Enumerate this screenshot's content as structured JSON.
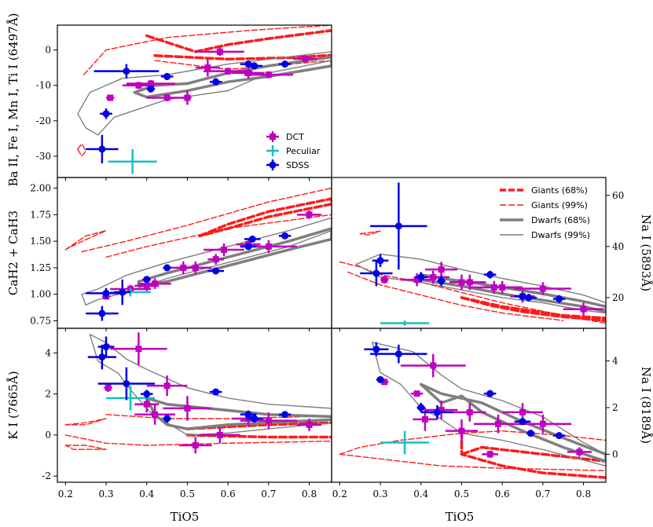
{
  "colors": {
    "dct": "#bf00bf",
    "peculiar": "#19bfbf",
    "sdss": "#0000e6",
    "giants": "#ff1a1a",
    "dwarfs": "#7f7f7f"
  },
  "legend_points": [
    "DCT",
    "Peculiar",
    "SDSS"
  ],
  "legend_contours": [
    "Giants (68%)",
    "Giants (99%)",
    "Dwarfs (68%)",
    "Dwarfs (99%)"
  ],
  "chart_data": [
    {
      "id": "ba_ti",
      "type": "scatter",
      "xlabel": "",
      "ylabel": "Ba II, Fe I, Mn I, Ti I (6497Å)",
      "xlim": [
        0.18,
        0.855
      ],
      "ylim": [
        -36,
        7
      ],
      "yticks": [
        "-30",
        "-20",
        "-10",
        "0"
      ],
      "ytick_values": [
        -30,
        -20,
        -10,
        0
      ],
      "series": [
        {
          "name": "DCT",
          "points": [
            [
              0.31,
              -13.5,
              0.01,
              0.5
            ],
            [
              0.38,
              -10.0,
              0.04,
              1.0
            ],
            [
              0.41,
              -9.5,
              0.06,
              1.0
            ],
            [
              0.45,
              -13.5,
              0.05,
              1.0
            ],
            [
              0.5,
              -13.5,
              0.01,
              2.0
            ],
            [
              0.55,
              -5.0,
              0.03,
              2.5
            ],
            [
              0.58,
              -0.5,
              0.06,
              1.2
            ],
            [
              0.6,
              -6.0,
              0.06,
              1.0
            ],
            [
              0.65,
              -6.5,
              0.04,
              1.5
            ],
            [
              0.7,
              -7.0,
              0.06,
              1.0
            ],
            [
              0.79,
              -2.5,
              0.03,
              1.0
            ]
          ]
        },
        {
          "name": "Peculiar",
          "points": [
            [
              0.365,
              -31.5,
              0.06,
              3.5
            ]
          ]
        },
        {
          "name": "SDSS",
          "points": [
            [
              0.29,
              -28.0,
              0.04,
              4.0
            ],
            [
              0.3,
              -18.0,
              0.015,
              1.5
            ],
            [
              0.35,
              -6.0,
              0.08,
              2.0
            ],
            [
              0.41,
              -11.0,
              0.01,
              1.0
            ],
            [
              0.45,
              -7.5,
              0.015,
              1.0
            ],
            [
              0.57,
              -9.0,
              0.015,
              1.0
            ],
            [
              0.65,
              -4.0,
              0.02,
              1.0
            ],
            [
              0.665,
              -4.5,
              0.02,
              1.0
            ],
            [
              0.74,
              -4.0,
              0.015,
              1.0
            ]
          ]
        }
      ]
    },
    {
      "id": "cah",
      "type": "scatter",
      "xlabel": "",
      "ylabel": "CaH2 + CaH3",
      "xlim": [
        0.18,
        0.855
      ],
      "ylim": [
        0.68,
        2.1
      ],
      "yticks": [
        "0.75",
        "1.00",
        "1.25",
        "1.50",
        "1.75",
        "2.00"
      ],
      "ytick_values": [
        0.75,
        1.0,
        1.25,
        1.5,
        1.75,
        2.0
      ],
      "series": [
        {
          "name": "DCT",
          "points": [
            [
              0.3,
              0.98,
              0.01,
              0.02
            ],
            [
              0.36,
              1.05,
              0.05,
              0.04
            ],
            [
              0.4,
              1.08,
              0.03,
              0.05
            ],
            [
              0.42,
              1.1,
              0.04,
              0.05
            ],
            [
              0.49,
              1.25,
              0.03,
              0.06
            ],
            [
              0.52,
              1.25,
              0.04,
              0.06
            ],
            [
              0.57,
              1.33,
              0.02,
              0.05
            ],
            [
              0.59,
              1.42,
              0.05,
              0.06
            ],
            [
              0.65,
              1.47,
              0.03,
              0.05
            ],
            [
              0.7,
              1.45,
              0.07,
              0.06
            ],
            [
              0.8,
              1.75,
              0.03,
              0.04
            ]
          ]
        },
        {
          "name": "Peculiar",
          "points": [
            [
              0.36,
              1.02,
              0.05,
              0.04
            ]
          ]
        },
        {
          "name": "SDSS",
          "points": [
            [
              0.29,
              0.82,
              0.04,
              0.07
            ],
            [
              0.3,
              1.01,
              0.05,
              0.05
            ],
            [
              0.34,
              1.02,
              0.02,
              0.12
            ],
            [
              0.4,
              1.14,
              0.01,
              0.02
            ],
            [
              0.45,
              1.25,
              0.01,
              0.02
            ],
            [
              0.57,
              1.22,
              0.02,
              0.02
            ],
            [
              0.65,
              1.45,
              0.02,
              0.02
            ],
            [
              0.66,
              1.52,
              0.02,
              0.02
            ],
            [
              0.74,
              1.55,
              0.015,
              0.02
            ]
          ]
        }
      ]
    },
    {
      "id": "na5893",
      "type": "scatter",
      "xlabel": "",
      "ylabel": "Na I (5893Å)",
      "xlim": [
        0.18,
        0.855
      ],
      "ylim": [
        8,
        67
      ],
      "yticks": [
        "20",
        "40",
        "60"
      ],
      "ytick_values": [
        20,
        40,
        60
      ],
      "series": [
        {
          "name": "DCT",
          "points": [
            [
              0.31,
              27.0,
              0.01,
              1.5
            ],
            [
              0.39,
              27.0,
              0.04,
              2.5
            ],
            [
              0.43,
              28.0,
              0.04,
              2.5
            ],
            [
              0.45,
              31.0,
              0.04,
              3.0
            ],
            [
              0.5,
              26.0,
              0.03,
              3.0
            ],
            [
              0.52,
              26.0,
              0.04,
              3.0
            ],
            [
              0.58,
              24.0,
              0.06,
              2.5
            ],
            [
              0.6,
              24.0,
              0.05,
              2.5
            ],
            [
              0.65,
              20.5,
              0.03,
              2.5
            ],
            [
              0.7,
              23.5,
              0.07,
              2.5
            ],
            [
              0.8,
              15.5,
              0.05,
              2.5
            ]
          ]
        },
        {
          "name": "Peculiar",
          "points": [
            [
              0.36,
              10.0,
              0.06,
              1.0
            ]
          ]
        },
        {
          "name": "SDSS",
          "points": [
            [
              0.29,
              29.5,
              0.04,
              5.0
            ],
            [
              0.3,
              34.5,
              0.02,
              2.5
            ],
            [
              0.345,
              48.0,
              0.07,
              17.0
            ],
            [
              0.4,
              28.0,
              0.015,
              2.0
            ],
            [
              0.45,
              26.5,
              0.01,
              2.0
            ],
            [
              0.57,
              29.0,
              0.015,
              1.5
            ],
            [
              0.65,
              20.5,
              0.02,
              1.5
            ],
            [
              0.665,
              20.0,
              0.02,
              1.5
            ],
            [
              0.74,
              19.5,
              0.015,
              1.5
            ]
          ]
        }
      ]
    },
    {
      "id": "ki",
      "type": "scatter",
      "xlabel": "TiO5",
      "ylabel": "K I (7665Å)",
      "xlim": [
        0.18,
        0.855
      ],
      "ylim": [
        -2.3,
        5.2
      ],
      "yticks": [
        "-2",
        "0",
        "2",
        "4"
      ],
      "ytick_values": [
        -2,
        0,
        2,
        4
      ],
      "xticks": [
        "0.2",
        "0.3",
        "0.4",
        "0.5",
        "0.6",
        "0.7",
        "0.8"
      ],
      "xtick_values": [
        0.2,
        0.3,
        0.4,
        0.5,
        0.6,
        0.7,
        0.8
      ],
      "series": [
        {
          "name": "DCT",
          "points": [
            [
              0.305,
              2.3,
              0.01,
              0.2
            ],
            [
              0.38,
              4.2,
              0.07,
              0.8
            ],
            [
              0.4,
              1.5,
              0.03,
              0.4
            ],
            [
              0.42,
              1.0,
              0.05,
              0.5
            ],
            [
              0.45,
              2.4,
              0.05,
              0.5
            ],
            [
              0.5,
              1.3,
              0.06,
              0.6
            ],
            [
              0.52,
              -0.5,
              0.04,
              0.4
            ],
            [
              0.58,
              0.0,
              0.05,
              0.4
            ],
            [
              0.65,
              0.8,
              0.04,
              0.4
            ],
            [
              0.7,
              0.7,
              0.07,
              0.4
            ],
            [
              0.8,
              0.5,
              0.03,
              0.3
            ]
          ]
        },
        {
          "name": "Peculiar",
          "points": [
            [
              0.36,
              1.8,
              0.06,
              0.6
            ]
          ]
        },
        {
          "name": "SDSS",
          "points": [
            [
              0.29,
              3.8,
              0.035,
              0.6
            ],
            [
              0.3,
              4.3,
              0.02,
              0.5
            ],
            [
              0.35,
              2.5,
              0.07,
              0.8
            ],
            [
              0.4,
              2.0,
              0.015,
              0.2
            ],
            [
              0.45,
              0.8,
              0.01,
              0.2
            ],
            [
              0.57,
              2.1,
              0.015,
              0.15
            ],
            [
              0.65,
              1.0,
              0.02,
              0.2
            ],
            [
              0.665,
              0.8,
              0.02,
              0.2
            ],
            [
              0.74,
              1.0,
              0.015,
              0.15
            ]
          ]
        }
      ]
    },
    {
      "id": "na8189",
      "type": "scatter",
      "xlabel": "TiO5",
      "ylabel": "Na I (8189Å)",
      "xlim": [
        0.18,
        0.855
      ],
      "ylim": [
        -1.2,
        5.4
      ],
      "yticks": [
        "0",
        "2",
        "4"
      ],
      "ytick_values": [
        0,
        2,
        4
      ],
      "xticks": [
        "0.2",
        "0.3",
        "0.4",
        "0.5",
        "0.6",
        "0.7",
        "0.8"
      ],
      "xtick_values": [
        0.2,
        0.3,
        0.4,
        0.5,
        0.6,
        0.7,
        0.8
      ],
      "series": [
        {
          "name": "DCT",
          "points": [
            [
              0.31,
              3.1,
              0.01,
              0.1
            ],
            [
              0.39,
              2.6,
              0.015,
              0.1
            ],
            [
              0.41,
              1.5,
              0.03,
              0.5
            ],
            [
              0.43,
              3.8,
              0.08,
              0.5
            ],
            [
              0.45,
              1.9,
              0.04,
              0.4
            ],
            [
              0.5,
              1.0,
              0.04,
              0.5
            ],
            [
              0.52,
              1.8,
              0.04,
              0.4
            ],
            [
              0.57,
              0.0,
              0.02,
              0.15
            ],
            [
              0.59,
              1.3,
              0.06,
              0.4
            ],
            [
              0.65,
              1.8,
              0.05,
              0.4
            ],
            [
              0.7,
              1.3,
              0.07,
              0.4
            ],
            [
              0.79,
              0.1,
              0.03,
              0.2
            ]
          ]
        },
        {
          "name": "Peculiar",
          "points": [
            [
              0.36,
              0.5,
              0.06,
              0.5
            ]
          ]
        },
        {
          "name": "SDSS",
          "points": [
            [
              0.29,
              4.5,
              0.03,
              0.3
            ],
            [
              0.3,
              3.2,
              0.01,
              0.1
            ],
            [
              0.345,
              4.3,
              0.07,
              0.4
            ],
            [
              0.4,
              2.0,
              0.01,
              0.2
            ],
            [
              0.44,
              1.8,
              0.04,
              0.3
            ],
            [
              0.57,
              2.6,
              0.015,
              0.15
            ],
            [
              0.65,
              1.4,
              0.02,
              0.15
            ],
            [
              0.67,
              0.9,
              0.01,
              0.1
            ],
            [
              0.74,
              0.8,
              0.015,
              0.1
            ]
          ]
        }
      ]
    }
  ]
}
